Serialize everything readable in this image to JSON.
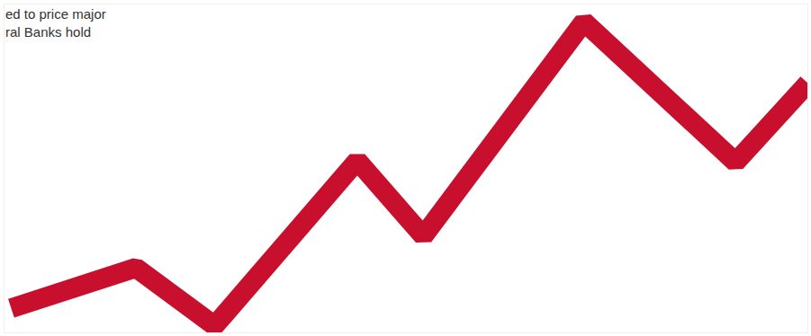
{
  "chart_data": {
    "type": "line",
    "annotations": [
      "ed to price major",
      "ral Banks hold"
    ],
    "x": [
      8,
      148,
      236,
      396,
      470,
      650,
      820,
      901
    ],
    "values": [
      28,
      74,
      8,
      196,
      110,
      354,
      194,
      284
    ],
    "color": "#c8102e",
    "xlim": [
      0,
      901
    ],
    "ylim": [
      0,
      374
    ],
    "grid": false,
    "tick_labels": false
  }
}
